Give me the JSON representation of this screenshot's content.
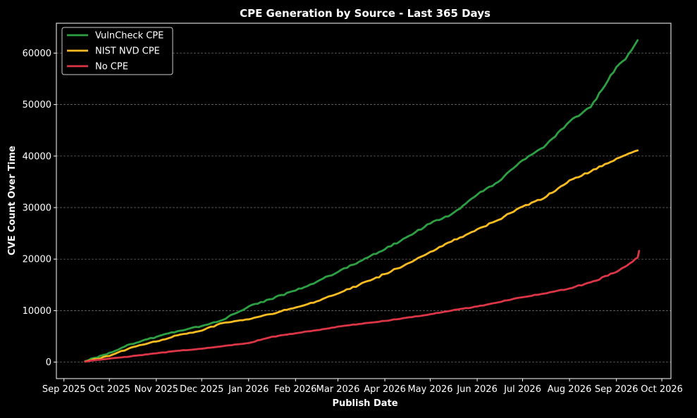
{
  "chart_data": {
    "type": "line",
    "title": "CPE Generation by Source - Last 365 Days",
    "xlabel": "Publish Date",
    "ylabel": "CVE Count Over Time",
    "x_ticks": [
      "Sep 2025",
      "Oct 2025",
      "Nov 2025",
      "Dec 2025",
      "Jan 2026",
      "Feb 2026",
      "Mar 2026",
      "Apr 2026",
      "May 2026",
      "Jun 2026",
      "Jul 2026",
      "Aug 2026",
      "Sep 2026",
      "Oct 2026"
    ],
    "y_ticks": [
      0,
      10000,
      20000,
      30000,
      40000,
      50000,
      60000
    ],
    "xlim": [
      "2025-08-27",
      "2026-10-07"
    ],
    "ylim": [
      -3200,
      65800
    ],
    "grid": "horizontal dashed",
    "legend_position": "top-left",
    "background_color": "#000000",
    "text_color": "#ffffff",
    "series": [
      {
        "name": "VulnCheck CPE",
        "color": "#2ca043",
        "x": [
          "2025-09-15",
          "2025-10-01",
          "2025-10-15",
          "2025-11-01",
          "2025-11-15",
          "2025-12-01",
          "2025-12-15",
          "2026-01-01",
          "2026-01-15",
          "2026-02-01",
          "2026-02-15",
          "2026-03-01",
          "2026-03-15",
          "2026-04-01",
          "2026-04-15",
          "2026-05-01",
          "2026-05-15",
          "2026-06-01",
          "2026-06-15",
          "2026-07-01",
          "2026-07-15",
          "2026-08-01",
          "2026-08-15",
          "2026-09-01",
          "2026-09-07",
          "2026-09-15"
        ],
        "values": [
          200,
          1800,
          3500,
          4900,
          6000,
          7000,
          8200,
          10800,
          12200,
          13900,
          15600,
          17500,
          19500,
          21900,
          24200,
          26900,
          28700,
          32500,
          35000,
          39200,
          41700,
          46700,
          49500,
          57300,
          58800,
          62500
        ]
      },
      {
        "name": "NIST NVD CPE",
        "color": "#fbbc1f",
        "x": [
          "2025-09-15",
          "2025-10-01",
          "2025-10-15",
          "2025-11-01",
          "2025-11-15",
          "2025-12-01",
          "2025-12-15",
          "2026-01-01",
          "2026-01-15",
          "2026-02-01",
          "2026-02-15",
          "2026-03-01",
          "2026-03-15",
          "2026-04-01",
          "2026-04-15",
          "2026-05-01",
          "2026-05-15",
          "2026-06-01",
          "2026-06-15",
          "2026-07-01",
          "2026-07-15",
          "2026-08-01",
          "2026-08-15",
          "2026-09-01",
          "2026-09-07",
          "2026-09-15"
        ],
        "values": [
          100,
          1200,
          2800,
          4000,
          5200,
          6100,
          7600,
          8300,
          9300,
          10600,
          11800,
          13300,
          15000,
          17100,
          19000,
          21400,
          23400,
          25800,
          27600,
          30200,
          31800,
          35300,
          37000,
          39500,
          40200,
          41100
        ]
      },
      {
        "name": "No CPE",
        "color": "#dc3545",
        "x": [
          "2025-09-15",
          "2025-10-01",
          "2025-10-15",
          "2025-11-01",
          "2025-11-15",
          "2025-12-01",
          "2025-12-15",
          "2026-01-01",
          "2026-01-15",
          "2026-02-01",
          "2026-02-15",
          "2026-03-01",
          "2026-03-15",
          "2026-04-01",
          "2026-04-15",
          "2026-05-01",
          "2026-05-15",
          "2026-06-01",
          "2026-06-15",
          "2026-07-01",
          "2026-07-15",
          "2026-08-01",
          "2026-08-15",
          "2026-09-01",
          "2026-09-10",
          "2026-09-15",
          "2026-09-16"
        ],
        "values": [
          100,
          700,
          1100,
          1700,
          2200,
          2600,
          3100,
          3700,
          4800,
          5600,
          6200,
          6900,
          7400,
          8000,
          8600,
          9300,
          10000,
          10800,
          11600,
          12600,
          13300,
          14300,
          15500,
          17500,
          19200,
          20300,
          21600
        ]
      }
    ]
  }
}
